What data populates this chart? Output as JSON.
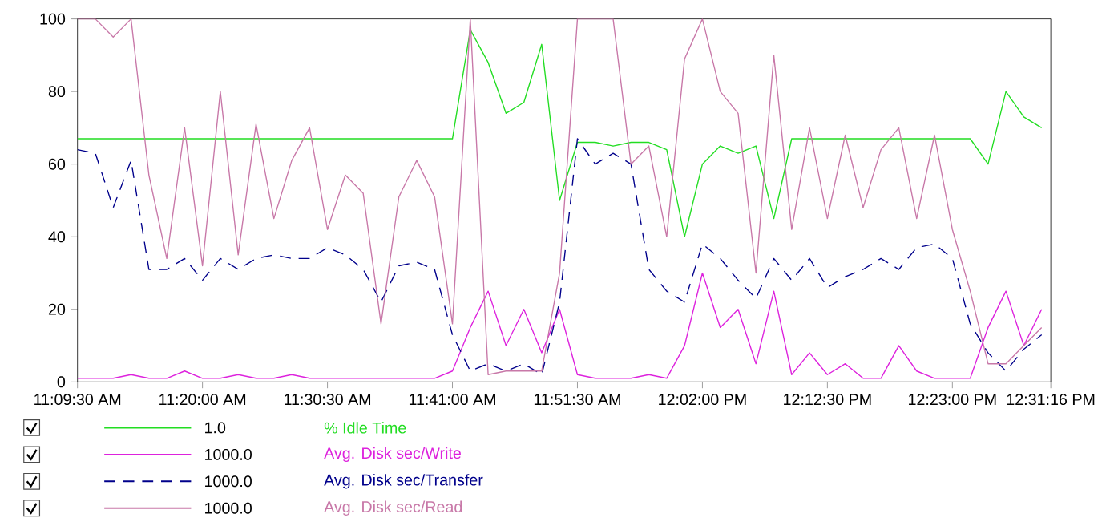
{
  "chart_data": {
    "type": "line",
    "legend": "bottom",
    "xlim": [
      11.1583,
      12.5211
    ],
    "ylim": [
      0,
      100
    ],
    "yticks": [
      0,
      20,
      40,
      60,
      80,
      100
    ],
    "xticks": [
      {
        "value": 11.1583,
        "label": "11:09:30 AM"
      },
      {
        "value": 11.3333,
        "label": "11:20:00 AM"
      },
      {
        "value": 11.5083,
        "label": "11:30:30 AM"
      },
      {
        "value": 11.6833,
        "label": "11:41:00 AM"
      },
      {
        "value": 11.8583,
        "label": "11:51:30 AM"
      },
      {
        "value": 12.0333,
        "label": "12:02:00 PM"
      },
      {
        "value": 12.2083,
        "label": "12:12:30 PM"
      },
      {
        "value": 12.3833,
        "label": "12:23:00 PM"
      },
      {
        "value": 12.5211,
        "label": "12:31:16 PM"
      }
    ],
    "annotations": [
      "1.0",
      "1000.0",
      "1000.0",
      "1000.0"
    ],
    "x": [
      11.1583,
      11.1833,
      11.2083,
      11.2333,
      11.2583,
      11.2833,
      11.3083,
      11.3333,
      11.3583,
      11.3833,
      11.4083,
      11.4333,
      11.4583,
      11.4833,
      11.5083,
      11.5333,
      11.5583,
      11.5833,
      11.6083,
      11.6333,
      11.6583,
      11.6833,
      11.7083,
      11.7333,
      11.7583,
      11.7833,
      11.8083,
      11.8333,
      11.8583,
      11.8833,
      11.9083,
      11.9333,
      11.9583,
      11.9833,
      12.0083,
      12.0333,
      12.0583,
      12.0833,
      12.1083,
      12.1333,
      12.1583,
      12.1833,
      12.2083,
      12.2333,
      12.2583,
      12.2833,
      12.3083,
      12.3333,
      12.3583,
      12.3833,
      12.4083,
      12.4333,
      12.4583,
      12.4833,
      12.5083
    ],
    "series": [
      {
        "name": "% Idle Time",
        "color": "#22dd22",
        "line_style": "solid",
        "values": [
          67,
          67,
          67,
          67,
          67,
          67,
          67,
          67,
          67,
          67,
          67,
          67,
          67,
          67,
          67,
          67,
          67,
          67,
          67,
          67,
          67,
          67,
          97,
          88,
          74,
          77,
          93,
          50,
          66,
          66,
          65,
          66,
          66,
          64,
          40,
          60,
          65,
          63,
          65,
          45,
          67,
          67,
          67,
          67,
          67,
          67,
          67,
          67,
          67,
          67,
          67,
          60,
          80,
          73,
          70
        ]
      },
      {
        "name": "Avg. Disk sec/Write",
        "color": "#dd22dd",
        "line_style": "solid",
        "values": [
          1,
          1,
          1,
          2,
          1,
          1,
          3,
          1,
          1,
          2,
          1,
          1,
          2,
          1,
          1,
          1,
          1,
          1,
          1,
          1,
          1,
          3,
          15,
          25,
          10,
          20,
          8,
          20,
          2,
          1,
          1,
          1,
          2,
          1,
          10,
          30,
          15,
          20,
          5,
          25,
          2,
          8,
          2,
          5,
          1,
          1,
          10,
          3,
          1,
          1,
          1,
          15,
          25,
          10,
          20
        ]
      },
      {
        "name": "Avg. Disk sec/Transfer",
        "color": "#00008b",
        "line_style": "dashed",
        "values": [
          64,
          63,
          48,
          61,
          31,
          31,
          34,
          28,
          34,
          31,
          34,
          35,
          34,
          34,
          37,
          35,
          31,
          22,
          32,
          33,
          31,
          13,
          3,
          5,
          3,
          5,
          2,
          22,
          67,
          60,
          63,
          60,
          31,
          25,
          22,
          38,
          34,
          28,
          23,
          34,
          28,
          34,
          26,
          29,
          31,
          34,
          31,
          37,
          38,
          34,
          16,
          8,
          3,
          9,
          13
        ]
      },
      {
        "name": "Avg. Disk sec/Read",
        "color": "#c878a8",
        "line_style": "solid",
        "values": [
          100,
          100,
          95,
          100,
          57,
          34,
          70,
          32,
          80,
          35,
          71,
          45,
          61,
          70,
          42,
          57,
          52,
          16,
          51,
          61,
          51,
          16,
          100,
          2,
          3,
          3,
          3,
          30,
          100,
          100,
          100,
          60,
          65,
          40,
          89,
          100,
          80,
          74,
          30,
          90,
          42,
          70,
          45,
          68,
          48,
          64,
          70,
          45,
          68,
          42,
          25,
          5,
          5,
          10,
          15
        ]
      }
    ]
  }
}
